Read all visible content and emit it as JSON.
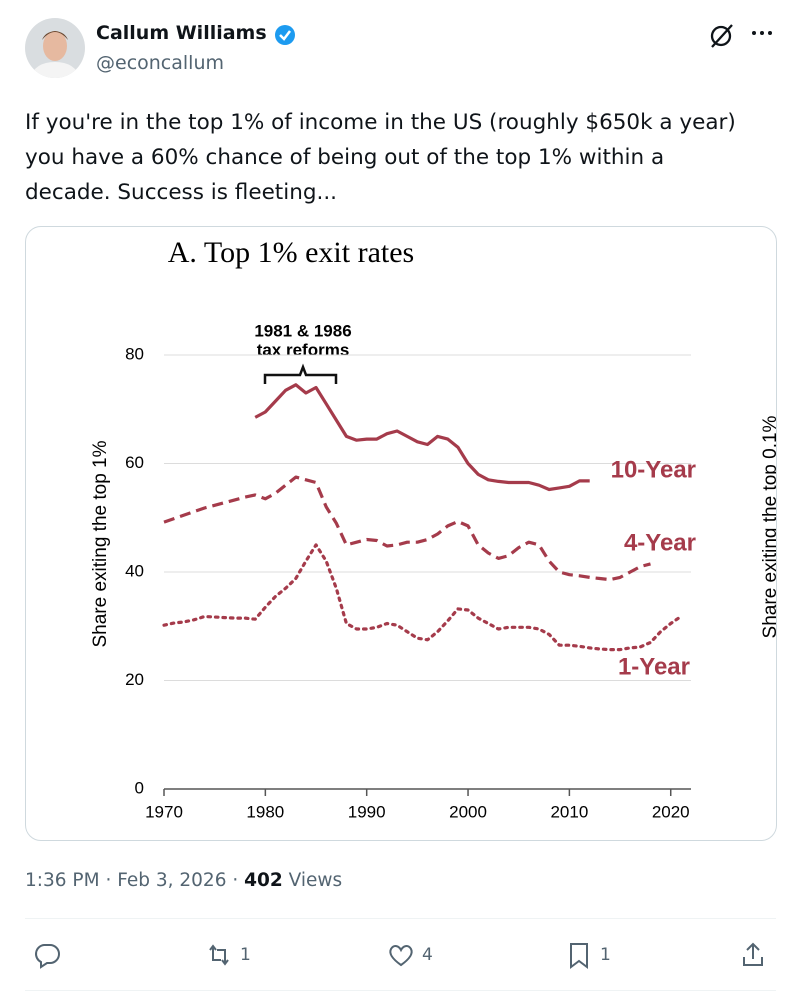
{
  "tweet": {
    "name": "Callum Williams",
    "handle": "@econcallum",
    "text": [
      "If you're in the top 1% of income in the US (roughly $650k a year)",
      "you have a 60% chance of being out of the top 1% within a",
      "decade. Success is fleeting..."
    ],
    "time": "1:36 PM",
    "separator": "·",
    "date": "Feb 3, 2026",
    "views": "402",
    "views_label": "Views",
    "retweets": "1",
    "likes": "4",
    "bookmarks": "1"
  },
  "chart_data": {
    "type": "line",
    "title": "A. Top 1% exit rates",
    "y_label": "Share exiting the top 1%",
    "y2_label": "Share exiting the top 0.1%",
    "annotation": [
      "1981 & 1986",
      "tax reforms"
    ],
    "xlim": [
      1970,
      2022
    ],
    "xticks": [
      1970,
      1980,
      1990,
      2000,
      2010,
      2020
    ],
    "ylim": [
      0,
      80
    ],
    "yticks": [
      0,
      20,
      40,
      60,
      80
    ],
    "grid": true,
    "series": [
      {
        "name": "10-Year",
        "color": "#a53b4b",
        "line_style": "solid",
        "x": [
          1979,
          1980,
          1981,
          1982,
          1983,
          1984,
          1985,
          1986,
          1987,
          1988,
          1989,
          1990,
          1991,
          1992,
          1993,
          1994,
          1995,
          1996,
          1997,
          1998,
          1999,
          2000,
          2001,
          2002,
          2003,
          2004,
          2005,
          2006,
          2007,
          2008,
          2009,
          2010,
          2011,
          2012
        ],
        "values": [
          68.5,
          69.5,
          71.5,
          73.5,
          74.5,
          73,
          74,
          71,
          68,
          65,
          64.3,
          64.5,
          64.5,
          65.5,
          66,
          65,
          64,
          63.5,
          65,
          64.5,
          63,
          60,
          58,
          57,
          56.7,
          56.5,
          56.5,
          56.5,
          56,
          55.2,
          55.5,
          55.8,
          56.8,
          56.8
        ]
      },
      {
        "name": "4-Year",
        "color": "#a53b4b",
        "line_style": "dashed",
        "x": [
          1970,
          1972,
          1974,
          1976,
          1978,
          1979,
          1980,
          1981,
          1982,
          1983,
          1984,
          1985,
          1986,
          1987,
          1988,
          1989,
          1990,
          1991,
          1992,
          1993,
          1994,
          1995,
          1996,
          1997,
          1998,
          1999,
          2000,
          2001,
          2002,
          2003,
          2004,
          2005,
          2006,
          2007,
          2008,
          2009,
          2010,
          2011,
          2012,
          2013,
          2014,
          2015,
          2016,
          2017,
          2018
        ],
        "values": [
          49.2,
          50.5,
          51.8,
          52.8,
          53.8,
          54.2,
          53.5,
          54.5,
          56,
          57.5,
          57,
          56.5,
          52,
          49,
          45,
          45.5,
          46,
          45.8,
          44.8,
          45,
          45.5,
          45.5,
          46,
          47,
          48.5,
          49.3,
          48.5,
          45,
          43.5,
          42.5,
          43,
          44.5,
          45.5,
          45,
          42,
          40,
          39.5,
          39.3,
          39,
          38.8,
          38.6,
          39,
          40,
          41,
          41.5
        ]
      },
      {
        "name": "1-Year",
        "color": "#a53b4b",
        "line_style": "dotted",
        "x": [
          1970,
          1971,
          1972,
          1973,
          1974,
          1975,
          1976,
          1977,
          1978,
          1979,
          1980,
          1981,
          1982,
          1983,
          1984,
          1985,
          1986,
          1987,
          1988,
          1989,
          1990,
          1991,
          1992,
          1993,
          1994,
          1995,
          1996,
          1997,
          1998,
          1999,
          2000,
          2001,
          2002,
          2003,
          2004,
          2005,
          2006,
          2007,
          2008,
          2009,
          2010,
          2011,
          2012,
          2013,
          2014,
          2015,
          2016,
          2017,
          2018,
          2019,
          2020,
          2021
        ],
        "values": [
          30.2,
          30.6,
          30.8,
          31.2,
          31.8,
          31.7,
          31.6,
          31.5,
          31.5,
          31.3,
          33.5,
          35.5,
          37,
          38.8,
          42,
          45,
          42,
          37,
          30.5,
          29.5,
          29.5,
          29.8,
          30.5,
          30.2,
          29,
          27.8,
          27.5,
          29,
          31,
          33.2,
          33,
          31.5,
          30.5,
          29.5,
          29.8,
          29.8,
          29.8,
          29.5,
          28.5,
          26.5,
          26.5,
          26.3,
          26,
          25.8,
          25.7,
          25.7,
          26,
          26.2,
          27,
          29,
          30.5,
          31.8
        ]
      }
    ]
  }
}
